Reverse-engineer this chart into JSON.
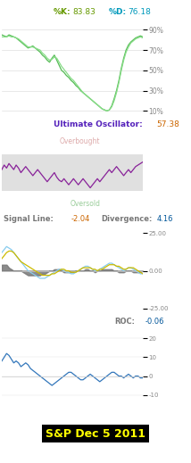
{
  "title": "S&P Dec 5 2011",
  "bg_color": "#ffffff",
  "stoch_label_k": "%K:",
  "stoch_val_k": "83.83",
  "stoch_label_d": "%D:",
  "stoch_val_d": "76.18",
  "stoch_yticks": [
    "90%",
    "70%",
    "50%",
    "30%",
    "10%"
  ],
  "stoch_yvals": [
    90,
    70,
    50,
    30,
    10
  ],
  "uo_label": "Ultimate Oscillator:",
  "uo_val": "57.38",
  "uo_overbought_label": "Overbought",
  "uo_oversold_label": "Oversold",
  "macd_signal_label": "Signal Line:",
  "macd_signal_val": "-2.04",
  "macd_div_label": "Divergence:",
  "macd_div_val": "4.16",
  "macd_yticks": [
    "25.00",
    "0.00",
    "-25.00"
  ],
  "macd_yvals": [
    25,
    0,
    -25
  ],
  "roc_label": "ROC:",
  "roc_val": "-0.06",
  "roc_yticks": [
    "20",
    "10",
    "0",
    "-10"
  ],
  "roc_yvals": [
    20,
    10,
    0,
    -10
  ],
  "color_k": "#55bb55",
  "color_d": "#88dd88",
  "color_uo": "#882299",
  "color_macd_line": "#88ccee",
  "color_macd_signal": "#ccbb00",
  "color_macd_hist": "#777777",
  "color_roc": "#3377bb",
  "color_grid": "#cccccc",
  "color_label_k": "#669900",
  "color_label_d": "#0099bb",
  "color_uo_title": "#5522bb",
  "color_uo_val": "#cc6600",
  "color_signal_label": "#777777",
  "color_signal_val": "#cc6600",
  "color_div_label": "#777777",
  "color_div_val": "#005599",
  "color_roc_label": "#777777",
  "color_roc_val": "#005599",
  "color_overbought": "#ddaaaa",
  "color_oversold": "#99cc99",
  "color_uo_band": "#dddddd"
}
